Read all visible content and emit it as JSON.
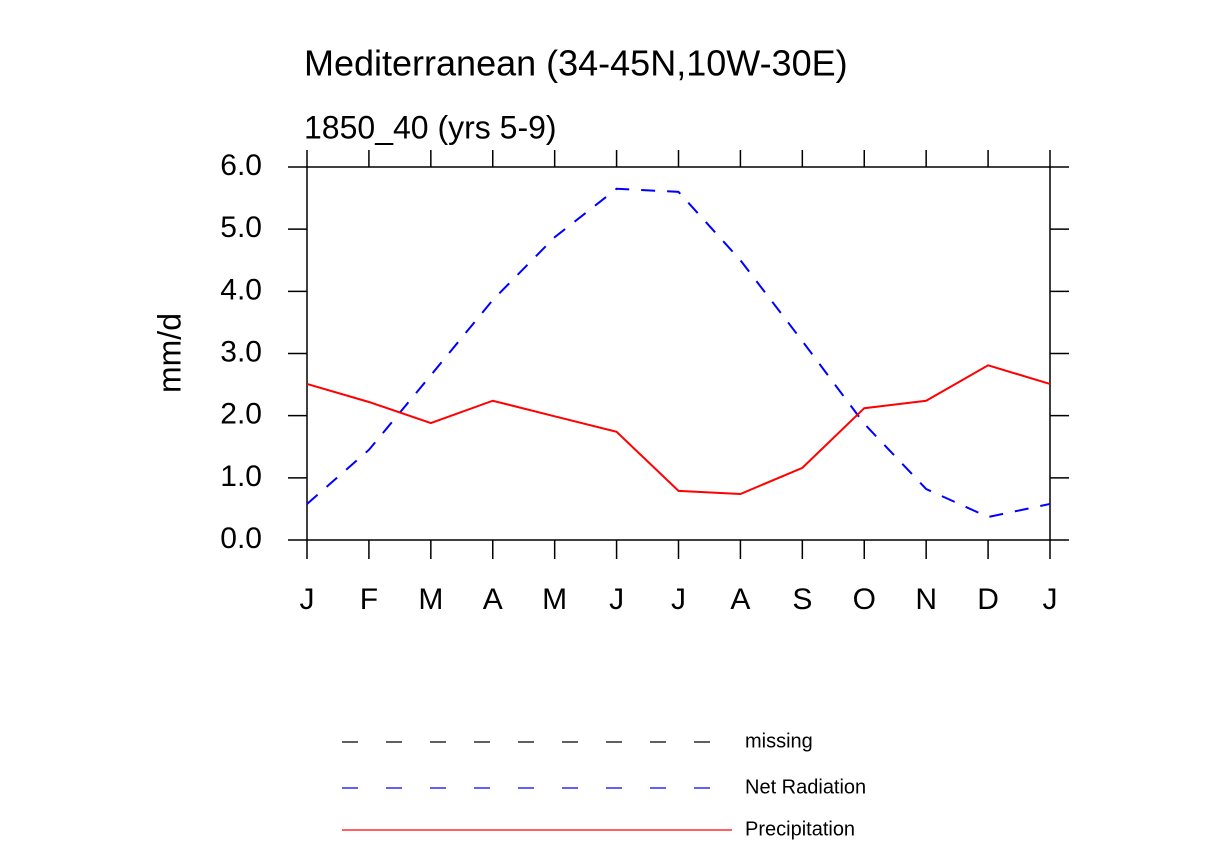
{
  "chart_data": {
    "type": "line",
    "title": "Mediterranean (34-45N,10W-30E)",
    "subtitle": "1850_40 (yrs 5-9)",
    "y_label": "mm/d",
    "categories": [
      "J",
      "F",
      "M",
      "A",
      "M",
      "J",
      "J",
      "A",
      "S",
      "O",
      "N",
      "D",
      "J"
    ],
    "series": [
      {
        "name": "missing",
        "color": "#000000",
        "dashed": true,
        "values": [
          null,
          null,
          null,
          null,
          null,
          null,
          null,
          null,
          null,
          null,
          null,
          null,
          null
        ]
      },
      {
        "name": "Net Radiation",
        "color": "#0000ff",
        "dashed": true,
        "values": [
          0.58,
          1.45,
          2.65,
          3.86,
          4.87,
          5.65,
          5.6,
          4.5,
          3.2,
          1.87,
          0.82,
          0.37,
          0.58
        ]
      },
      {
        "name": "Precipitation",
        "color": "#ff0000",
        "dashed": false,
        "values": [
          2.51,
          2.22,
          1.88,
          2.24,
          1.99,
          1.74,
          0.79,
          0.74,
          1.16,
          2.12,
          2.24,
          2.81,
          2.51
        ]
      }
    ],
    "ylim": [
      0,
      6
    ],
    "yticks": [
      {
        "value": 0,
        "label": "0.0"
      },
      {
        "value": 1,
        "label": "1.0"
      },
      {
        "value": 2,
        "label": "2.0"
      },
      {
        "value": 3,
        "label": "3.0"
      },
      {
        "value": 4,
        "label": "4.0"
      },
      {
        "value": 5,
        "label": "5.0"
      },
      {
        "value": 6,
        "label": "6.0"
      }
    ]
  }
}
